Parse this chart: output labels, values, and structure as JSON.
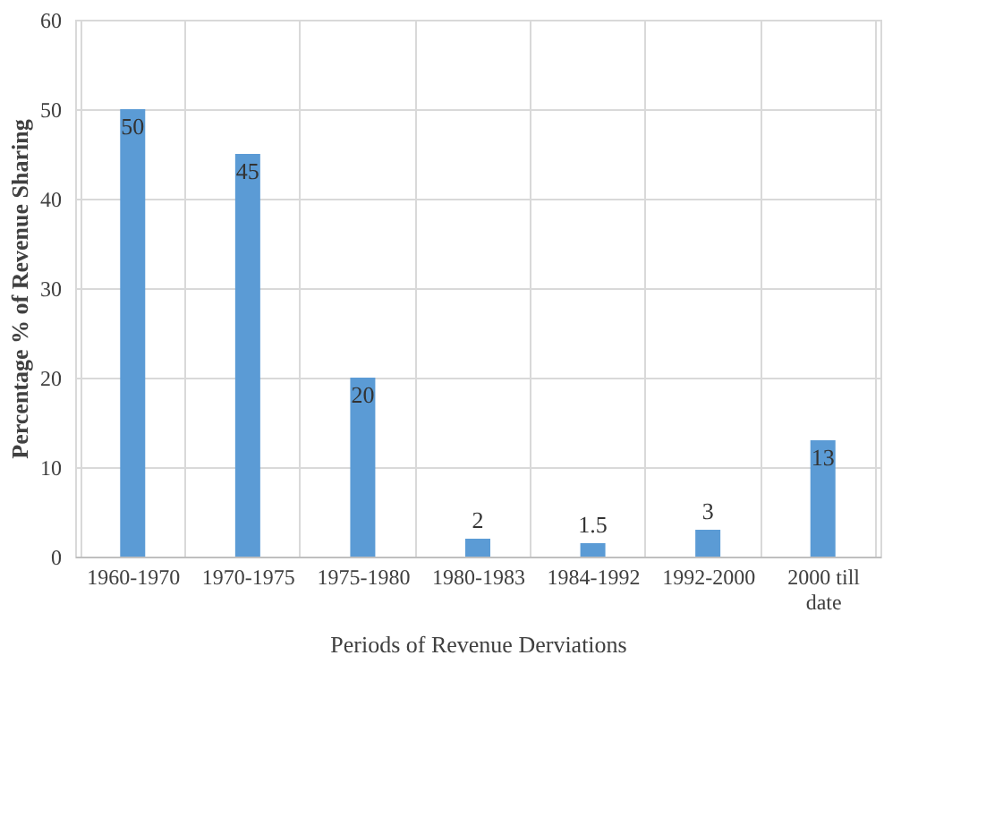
{
  "chart_data": {
    "type": "bar",
    "xlabel": "Periods of Revenue Derviations",
    "ylabel": "Percentage % of Revenue Sharing",
    "categories": [
      "1960-1970",
      "1970-1975",
      "1975-1980",
      "1980-1983",
      "1984-1992",
      "1992-2000",
      "2000 till date"
    ],
    "values": [
      50,
      45,
      20,
      2,
      1.5,
      3,
      13
    ],
    "color": "#5b9bd5",
    "ylim": [
      0,
      60
    ],
    "yticks": [
      0,
      10,
      20,
      30,
      40,
      50,
      60
    ],
    "grid": true,
    "data_labels": true
  }
}
